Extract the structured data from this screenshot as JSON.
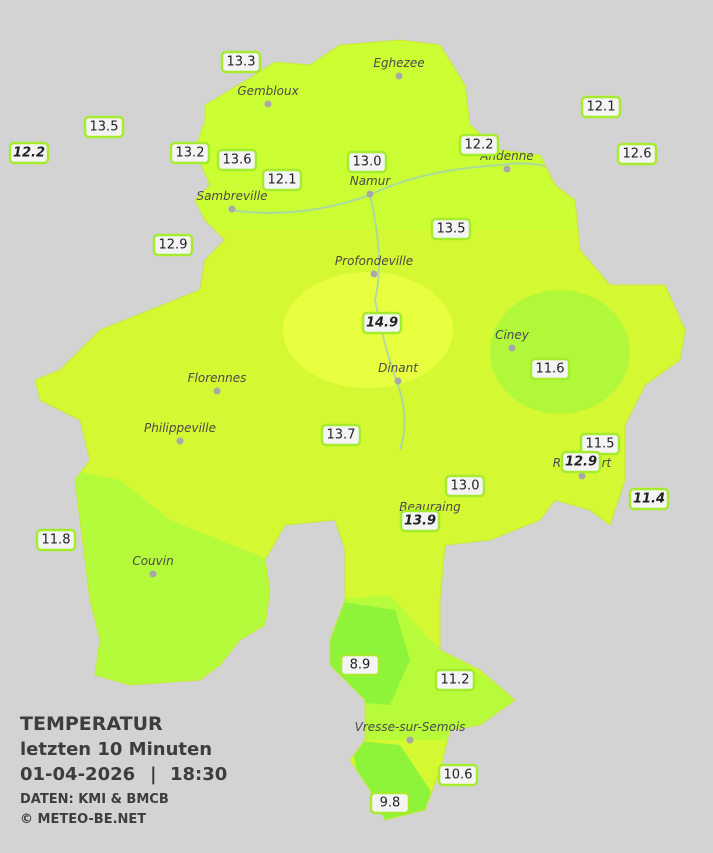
{
  "map": {
    "cities": [
      "Eghezee",
      "Gembloux",
      "Andenne",
      "Namur",
      "Sambreville",
      "Profondeville",
      "Ciney",
      "Dinant",
      "Florennes",
      "Philippeville",
      "Beauraing",
      "Rochefort",
      "Couvin",
      "Vresse-sur-Semois"
    ],
    "stations": [
      {
        "value": "13.3"
      },
      {
        "value": "13.5"
      },
      {
        "value": "12.2",
        "italic": true
      },
      {
        "value": "13.2"
      },
      {
        "value": "13.6"
      },
      {
        "value": "12.1"
      },
      {
        "value": "13.0"
      },
      {
        "value": "12.2"
      },
      {
        "value": "12.1"
      },
      {
        "value": "12.6"
      },
      {
        "value": "12.9"
      },
      {
        "value": "13.5"
      },
      {
        "value": "14.9",
        "italic": true
      },
      {
        "value": "11.6"
      },
      {
        "value": "13.7"
      },
      {
        "value": "11.5"
      },
      {
        "value": "12.9",
        "italic": true
      },
      {
        "value": "13.0"
      },
      {
        "value": "11.4",
        "italic": true
      },
      {
        "value": "13.9",
        "italic": true
      },
      {
        "value": "11.8"
      },
      {
        "value": "8.9"
      },
      {
        "value": "11.2"
      },
      {
        "value": "10.6"
      },
      {
        "value": "9.8"
      }
    ]
  },
  "legend": {
    "title": "TEMPERATUR",
    "period": "letzten 10 Minuten",
    "date": "01-04-2026",
    "separator": "|",
    "time": "18:30",
    "source": "DATEN: KMI & BMCB",
    "copyright": "© METEO-BE.NET"
  }
}
